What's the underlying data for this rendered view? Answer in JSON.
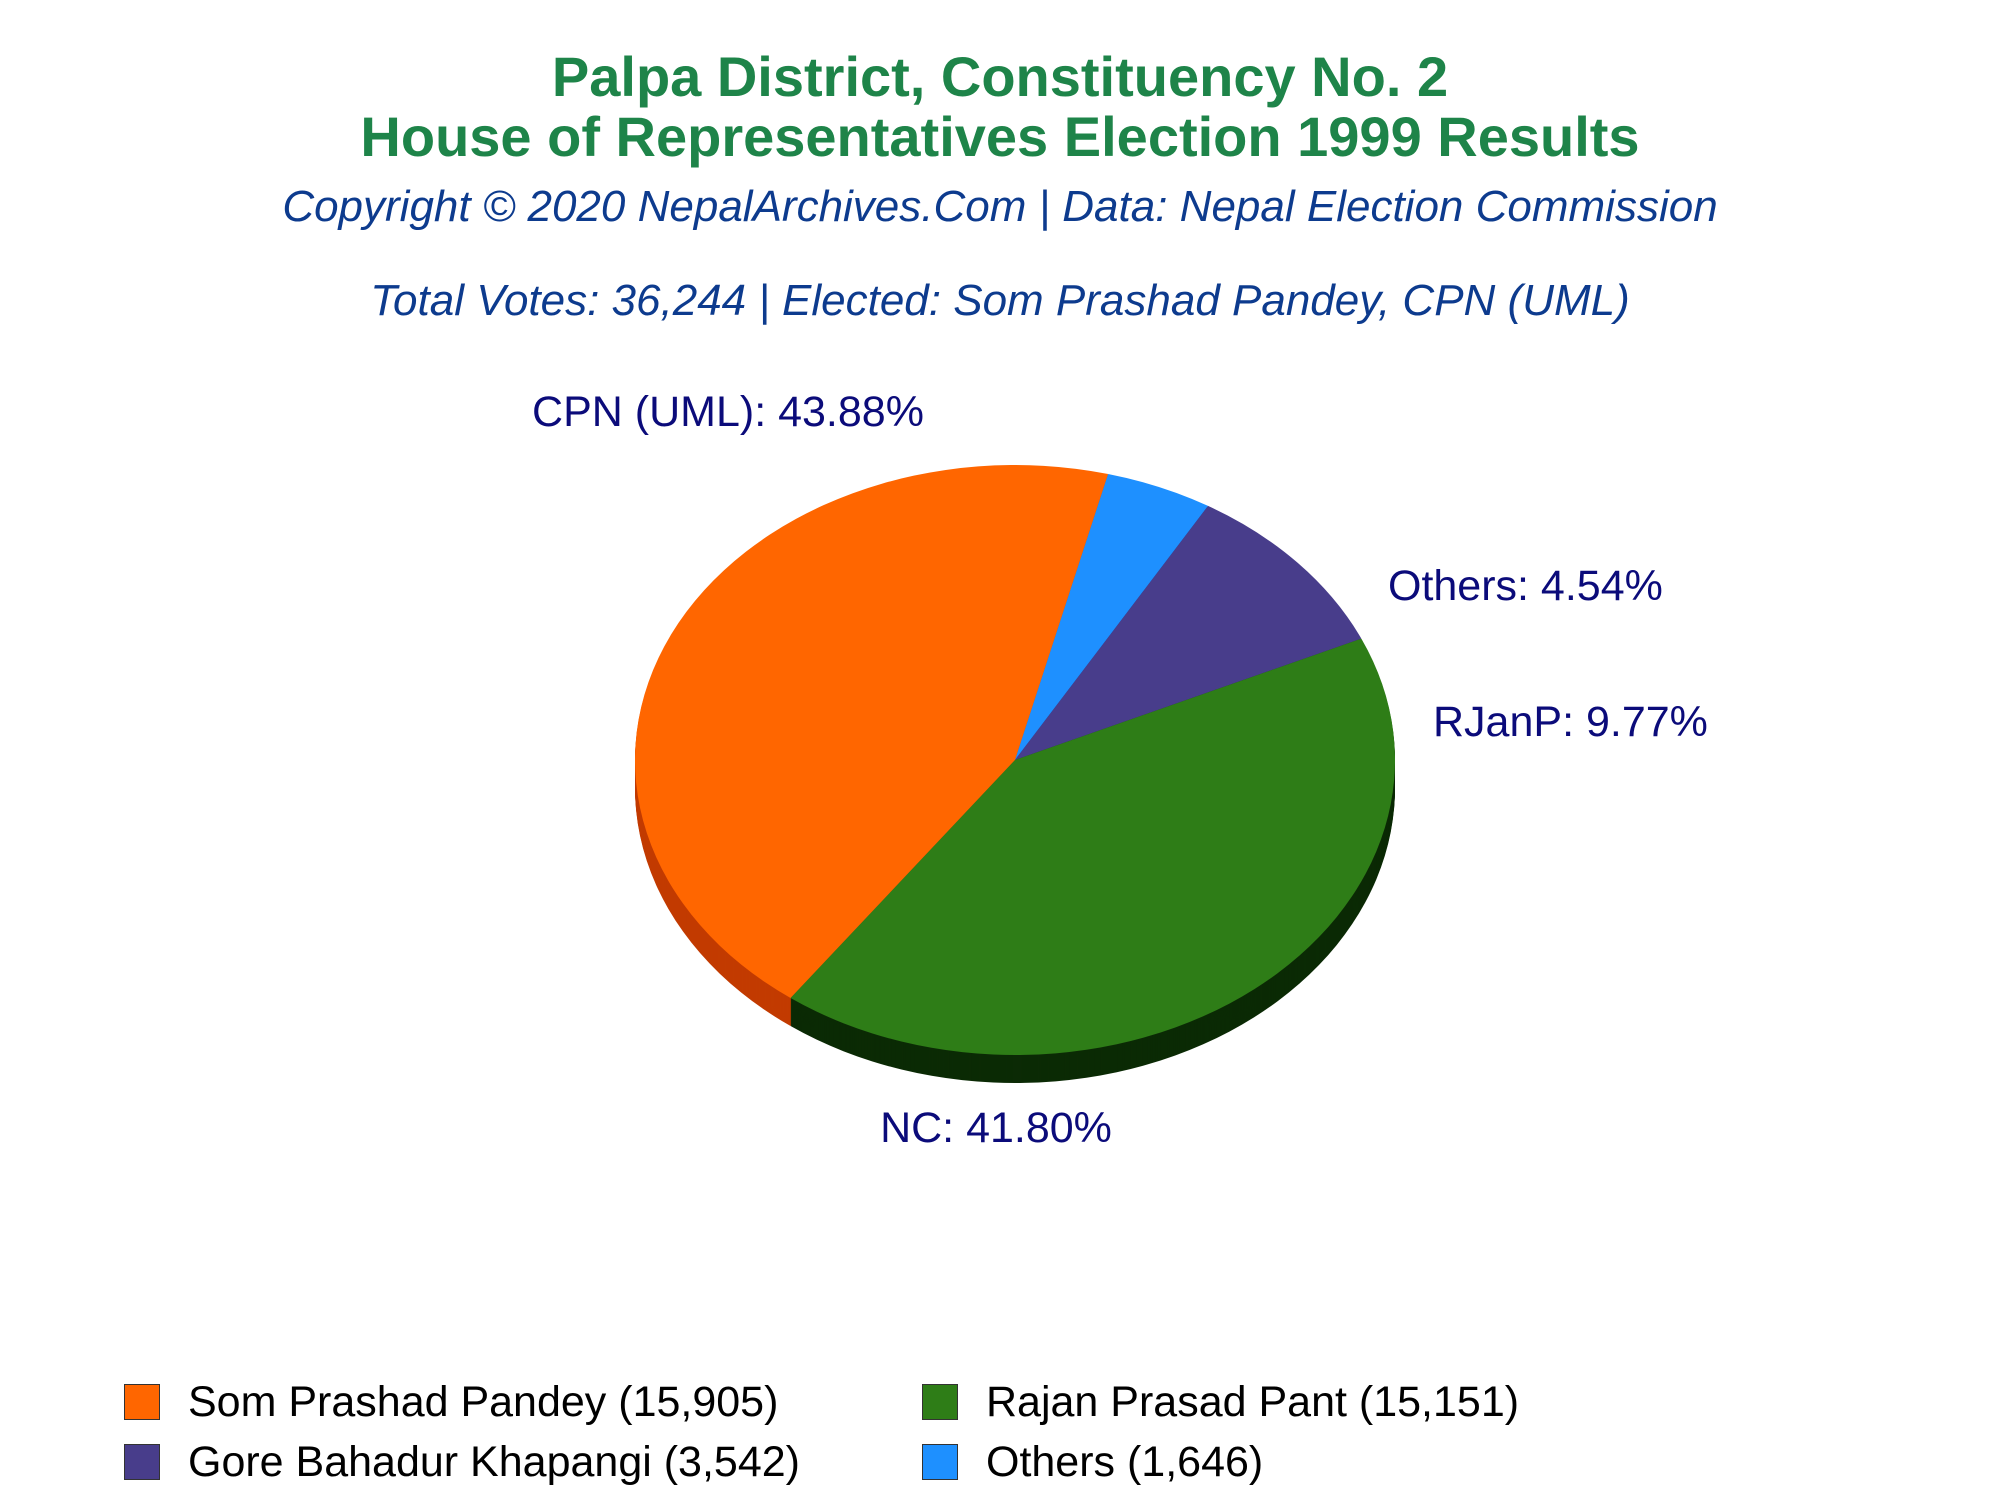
{
  "chart_data": {
    "type": "pie",
    "title": "Palpa District, Constituency No. 2",
    "subtitle": "House of Representatives Election 1999 Results",
    "copyright": "Copyright © 2020 NepalArchives.Com | Data: Nepal Election Commission",
    "summary": "Total Votes: 36,244 | Elected: Som Prashad Pandey, CPN (UML)",
    "slices": [
      {
        "label": "CPN (UML): 43.88%",
        "party": "CPN (UML)",
        "percent": 43.88,
        "votes": 15905,
        "color": "#ff6600",
        "side_color": "#c23b00"
      },
      {
        "label": "Others: 4.54%",
        "party": "Others",
        "percent": 4.54,
        "votes": 1646,
        "color": "#1e90ff",
        "side_color": "#0a4f9e"
      },
      {
        "label": "RJanP: 9.77%",
        "party": "RJanP",
        "percent": 9.77,
        "votes": 3542,
        "color": "#483d8b",
        "side_color": "#1c1850"
      },
      {
        "label": "NC: 41.80%",
        "party": "NC",
        "percent": 41.8,
        "votes": 15151,
        "color": "#2e7d17",
        "side_color": "#0b2a05"
      }
    ],
    "legend": [
      {
        "text": "Som Prashad Pandey (15,905)",
        "color": "#ff6600"
      },
      {
        "text": "Rajan Prasad Pant (15,151)",
        "color": "#2e7d17"
      },
      {
        "text": "Gore Bahadur Khapangi (3,542)",
        "color": "#483d8b"
      },
      {
        "text": "Others (1,646)",
        "color": "#1e90ff"
      }
    ],
    "legend_placement": "bottom"
  }
}
